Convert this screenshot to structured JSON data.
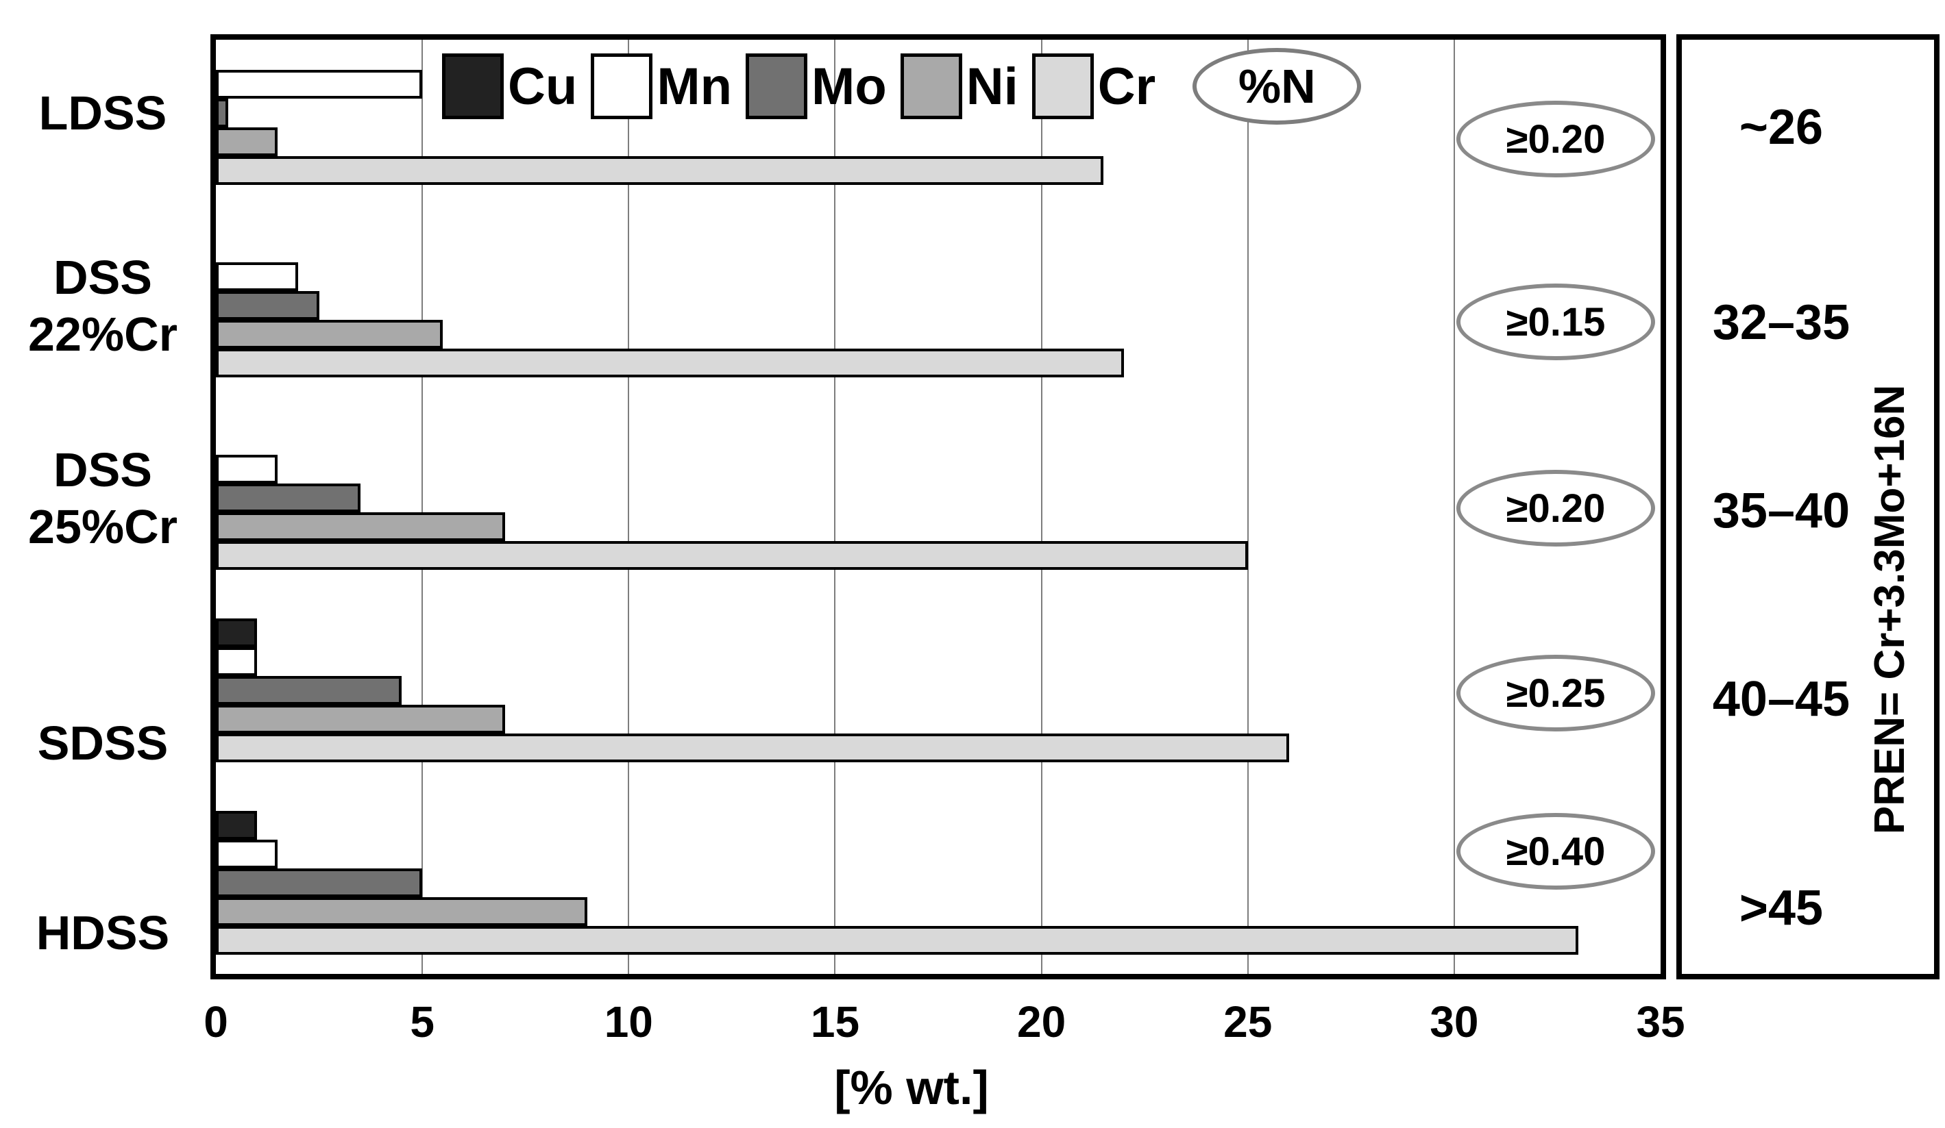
{
  "chart_data": {
    "type": "bar",
    "orientation": "horizontal",
    "xlabel": "[% wt.]",
    "xlim": [
      0,
      35
    ],
    "x_ticks": [
      "0",
      "5",
      "10",
      "15",
      "20",
      "25",
      "30",
      "35"
    ],
    "gridlines_at": [
      5,
      10,
      15,
      20,
      25,
      30
    ],
    "grid": "on",
    "legend_position": "top-inside",
    "categories": [
      "LDSS",
      "DSS 22%Cr",
      "DSS 25%Cr",
      "SDSS",
      "HDSS"
    ],
    "category_label_lines": [
      [
        "LDSS"
      ],
      [
        "DSS",
        "22%Cr"
      ],
      [
        "DSS",
        "25%Cr"
      ],
      [
        "SDSS"
      ],
      [
        "HDSS"
      ]
    ],
    "series": [
      {
        "name": "Cu",
        "color": "#222222",
        "values": [
          0,
          0,
          0,
          1.0,
          1.0
        ]
      },
      {
        "name": "Mn",
        "color": "#ffffff",
        "values": [
          5.0,
          2.0,
          1.5,
          1.0,
          1.5
        ]
      },
      {
        "name": "Mo",
        "color": "#717171",
        "values": [
          0.3,
          2.5,
          3.5,
          4.5,
          5.0
        ]
      },
      {
        "name": "Ni",
        "color": "#a9a9a9",
        "values": [
          1.5,
          5.5,
          7.0,
          7.0,
          9.0
        ]
      },
      {
        "name": "Cr",
        "color": "#d9d9d9",
        "values": [
          21.5,
          22.0,
          25.0,
          26.0,
          33.0
        ]
      }
    ],
    "nitrogen_legend_label": "%N",
    "nitrogen_labels": [
      "≥0.20",
      "≥0.15",
      "≥0.20",
      "≥0.25",
      "≥0.40"
    ],
    "pren_labels": [
      "~26",
      "32–35",
      "35–40",
      "40–45",
      ">45"
    ],
    "pren_formula": "PREN= Cr+3.3Mo+16N",
    "colors": {
      "bar_border": "#000000",
      "gridline": "#7d7d7d",
      "oval_border": "#8a8a8a",
      "background": "#ffffff"
    }
  }
}
